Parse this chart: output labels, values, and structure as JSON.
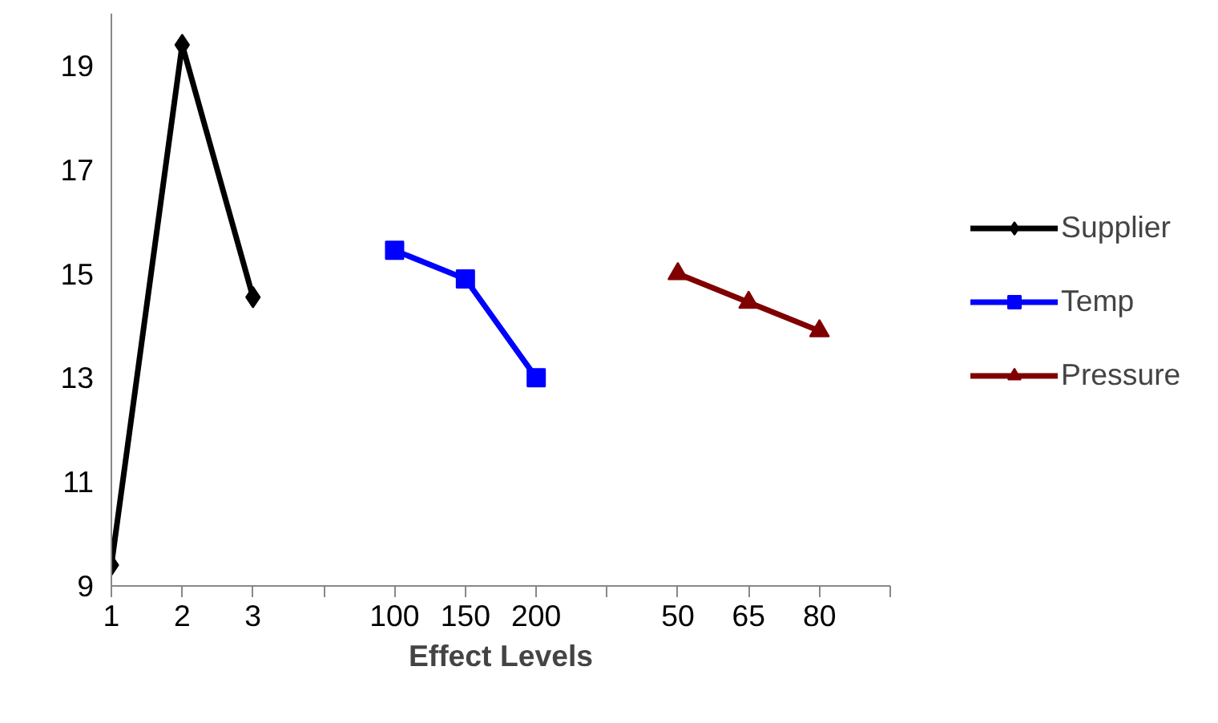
{
  "chart_data": {
    "type": "line",
    "xlabel": "Effect Levels",
    "categories": [
      "1",
      "2",
      "3",
      null,
      "100",
      "150",
      "200",
      null,
      "50",
      "65",
      "80",
      null
    ],
    "series": [
      {
        "name": "Supplier",
        "color": "#000000",
        "marker": "diamond",
        "values": [
          9.4,
          19.4,
          14.55,
          null,
          null,
          null,
          null,
          null,
          null,
          null,
          null,
          null
        ]
      },
      {
        "name": "Temp",
        "color": "#0000ff",
        "marker": "square",
        "values": [
          null,
          null,
          null,
          null,
          15.45,
          14.9,
          13.0,
          null,
          null,
          null,
          null,
          null
        ]
      },
      {
        "name": "Pressure",
        "color": "#800000",
        "marker": "triangle",
        "values": [
          null,
          null,
          null,
          null,
          null,
          null,
          null,
          null,
          15.0,
          14.45,
          13.9,
          null
        ]
      }
    ],
    "ylim": [
      9,
      20
    ],
    "yticks": [
      9,
      11,
      13,
      15,
      17,
      19
    ],
    "grid": false,
    "legend": "right",
    "line_style": "solid"
  }
}
